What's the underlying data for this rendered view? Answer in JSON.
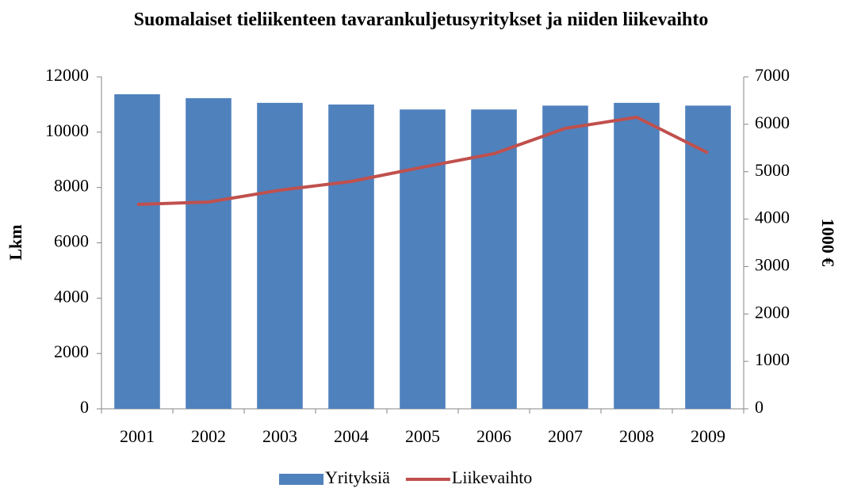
{
  "chart_data": {
    "type": "combo",
    "title": "Suomalaiset tieliikenteen tavarankuljetusyritykset ja niiden liikevaihto",
    "y_label": "Lkm",
    "y2_label": "1000 €",
    "categories": [
      "2001",
      "2002",
      "2003",
      "2004",
      "2005",
      "2006",
      "2007",
      "2008",
      "2009"
    ],
    "series": [
      {
        "name": "Yrityksiä",
        "type": "bar",
        "color": "#4f81bd",
        "values": [
          11370,
          11230,
          11060,
          11000,
          10820,
          10820,
          10960,
          11060,
          10960
        ]
      },
      {
        "name": "Liikevaihto",
        "type": "line",
        "axis": "y2",
        "color": "#c0504d",
        "values": [
          4310,
          4360,
          4610,
          4795,
          5095,
          5380,
          5914,
          6148,
          5396
        ]
      }
    ],
    "ylim": [
      0,
      12000
    ],
    "yticks": [
      0,
      2000,
      4000,
      6000,
      8000,
      10000,
      12000
    ],
    "y2lim": [
      0,
      7000
    ],
    "y2ticks": [
      0,
      1000,
      2000,
      3000,
      4000,
      5000,
      6000,
      7000
    ],
    "legend": "bottom"
  }
}
